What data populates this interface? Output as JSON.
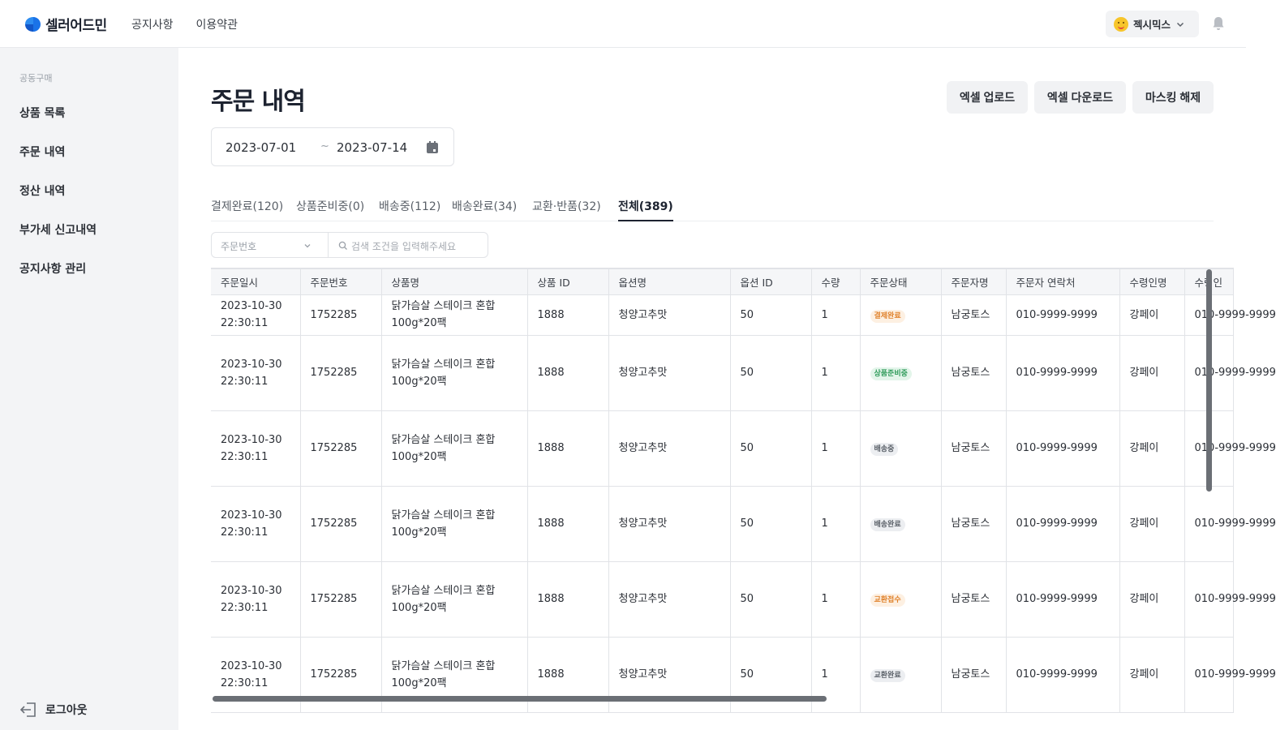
{
  "app": {
    "name": "셀러어드민"
  },
  "topnav": {
    "notices": "공지사항",
    "terms": "이용약관"
  },
  "user": {
    "name": "젝시믹스"
  },
  "sidebar": {
    "group": "공동구매",
    "items": [
      {
        "label": "상품 목록"
      },
      {
        "label": "주문 내역"
      },
      {
        "label": "정산 내역"
      },
      {
        "label": "부가세 신고내역"
      },
      {
        "label": "공지사항 관리"
      }
    ],
    "logout": "로그아웃"
  },
  "page": {
    "title": "주문 내역"
  },
  "actions": {
    "excel_upload": "엑셀 업로드",
    "excel_download": "엑셀 다운로드",
    "unmask": "마스킹 해제"
  },
  "date_range": {
    "from": "2023-07-01",
    "separator": "~",
    "to": "2023-07-14"
  },
  "tabs": [
    {
      "label": "결제완료(120)"
    },
    {
      "label": "상품준비중(0)"
    },
    {
      "label": "배송중(112)"
    },
    {
      "label": "배송완료(34)"
    },
    {
      "label": "교환·반품(32)"
    },
    {
      "label": "전체(389)"
    }
  ],
  "search": {
    "field_selected": "주문번호",
    "placeholder": "검색 조건을 입력해주세요"
  },
  "table": {
    "headers": [
      "주문일시",
      "주문번호",
      "상품명",
      "상품 ID",
      "옵션명",
      "옵션 ID",
      "수량",
      "주문상태",
      "주문자명",
      "주문자 연락처",
      "수령인명",
      "수령인"
    ],
    "rows": [
      {
        "date": "2023-10-30",
        "time": "22:30:11",
        "order_no": "1752285",
        "product_1": "닭가슴살 스테이크 혼합",
        "product_2": "100g*20팩",
        "product_id": "1888",
        "option": "청양고추맛",
        "option_id": "50",
        "qty": "1",
        "status": "결제완료",
        "buyer": "남궁토스",
        "phone": "010-9999-9999",
        "receiver": "강페이",
        "receiver_phone": "010-9999-9999"
      },
      {
        "date": "2023-10-30",
        "time": "22:30:11",
        "order_no": "1752285",
        "product_1": "닭가슴살 스테이크 혼합",
        "product_2": "100g*20팩",
        "product_id": "1888",
        "option": "청양고추맛",
        "option_id": "50",
        "qty": "1",
        "status": "상품준비중",
        "buyer": "남궁토스",
        "phone": "010-9999-9999",
        "receiver": "강페이",
        "receiver_phone": "010-9999-9999"
      },
      {
        "date": "2023-10-30",
        "time": "22:30:11",
        "order_no": "1752285",
        "product_1": "닭가슴살 스테이크 혼합",
        "product_2": "100g*20팩",
        "product_id": "1888",
        "option": "청양고추맛",
        "option_id": "50",
        "qty": "1",
        "status": "배송중",
        "buyer": "남궁토스",
        "phone": "010-9999-9999",
        "receiver": "강페이",
        "receiver_phone": "010-9999-9999"
      },
      {
        "date": "2023-10-30",
        "time": "22:30:11",
        "order_no": "1752285",
        "product_1": "닭가슴살 스테이크 혼합",
        "product_2": "100g*20팩",
        "product_id": "1888",
        "option": "청양고추맛",
        "option_id": "50",
        "qty": "1",
        "status": "배송완료",
        "buyer": "남궁토스",
        "phone": "010-9999-9999",
        "receiver": "강페이",
        "receiver_phone": "010-9999-9999"
      },
      {
        "date": "2023-10-30",
        "time": "22:30:11",
        "order_no": "1752285",
        "product_1": "닭가슴살 스테이크 혼합",
        "product_2": "100g*20팩",
        "product_id": "1888",
        "option": "청양고추맛",
        "option_id": "50",
        "qty": "1",
        "status": "교환접수",
        "buyer": "남궁토스",
        "phone": "010-9999-9999",
        "receiver": "강페이",
        "receiver_phone": "010-9999-9999"
      },
      {
        "date": "2023-10-30",
        "time": "22:30:11",
        "order_no": "1752285",
        "product_1": "닭가슴살 스테이크 혼합",
        "product_2": "100g*20팩",
        "product_id": "1888",
        "option": "청양고추맛",
        "option_id": "50",
        "qty": "1",
        "status": "교환완료",
        "buyer": "남궁토스",
        "phone": "010-9999-9999",
        "receiver": "강페이",
        "receiver_phone": "010-9999-9999"
      }
    ]
  },
  "status_colors": {
    "결제완료": {
      "bg": "#fdf0e2",
      "fg": "#e0822c"
    },
    "상품준비중": {
      "bg": "#e3f5ea",
      "fg": "#2e9b5a"
    },
    "배송중": {
      "bg": "#eceef1",
      "fg": "#5a6068"
    },
    "배송완료": {
      "bg": "#eceef1",
      "fg": "#5a6068"
    },
    "교환접수": {
      "bg": "#fdf0e2",
      "fg": "#e0822c"
    },
    "교환완료": {
      "bg": "#eceef1",
      "fg": "#5a6068"
    }
  },
  "colors": {
    "brand": "#1a73e8",
    "brand_dark": "#1257c9"
  }
}
